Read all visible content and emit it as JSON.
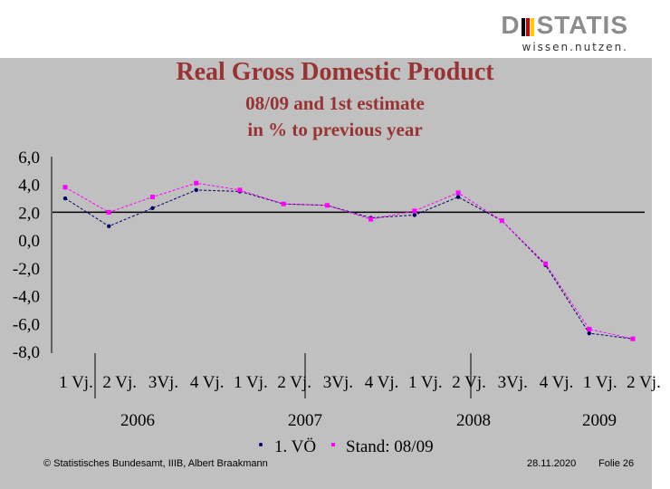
{
  "logo": {
    "brand_left": "D",
    "brand_right": "STATIS",
    "tagline": "wissen.nutzen.",
    "colors": [
      "#000000",
      "#cc0000",
      "#ffcc00"
    ]
  },
  "title": {
    "line1": "Real Gross Domestic Product",
    "line2": "08/09 and 1st estimate",
    "line3": "in % to previous year"
  },
  "chart_data": {
    "type": "line",
    "title": "Real Gross Domestic Product",
    "ylim": [
      -8,
      6
    ],
    "yticks": [
      "6,0",
      "4,0",
      "2,0",
      "0,0",
      "-2,0",
      "-4,0",
      "-6,0",
      "-8,0"
    ],
    "ytick_values": [
      6,
      4,
      2,
      0,
      -2,
      -4,
      -6,
      -8
    ],
    "categories": [
      "1 Vj.",
      "2 Vj.",
      "3Vj.",
      "4 Vj.",
      "1 Vj.",
      "2 Vj.",
      "3Vj.",
      "4 Vj.",
      "1 Vj.",
      "2 Vj.",
      "3Vj.",
      "4 Vj.",
      "1 Vj.",
      "2 Vj."
    ],
    "years": [
      "2006",
      "2007",
      "2008",
      "2009"
    ],
    "series": [
      {
        "name": "1. VÖ",
        "color": "#000066",
        "values": [
          3.0,
          1.0,
          2.3,
          3.6,
          3.5,
          2.6,
          2.5,
          1.6,
          1.8,
          3.1,
          1.4,
          -1.8,
          -6.7,
          -7.1
        ]
      },
      {
        "name": "Stand: 08/09",
        "color": "#ff00ff",
        "values": [
          3.8,
          2.0,
          3.1,
          4.1,
          3.6,
          2.6,
          2.5,
          1.5,
          2.1,
          3.4,
          1.4,
          -1.7,
          -6.4,
          -7.1
        ]
      }
    ],
    "reference_line": 2.0,
    "legend": "bottom"
  },
  "footer": {
    "copyright": "© Statistisches Bundesamt, IIIB, Albert Braakmann",
    "date": "28.11.2020",
    "slide": "Folie 26"
  }
}
